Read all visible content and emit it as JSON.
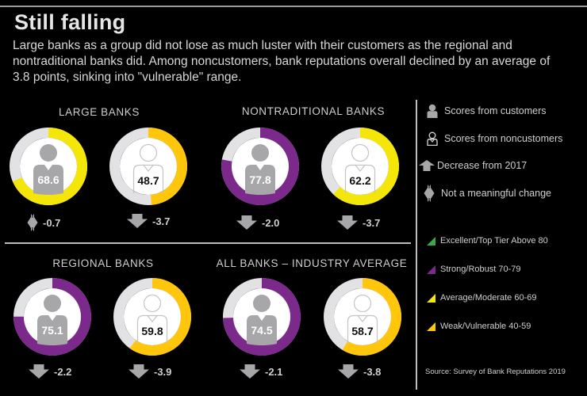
{
  "header": {
    "title": "Still falling",
    "subtitle": "Large banks as a group did not lose as much luster with their customers as the regional and nontraditional banks did. Among noncustomers, bank reputations overall declined by an average of 3.8 points, sinking into \"vulnerable\" range."
  },
  "legend": {
    "symbols": [
      {
        "icon": "customer-icon",
        "label": "Scores from customers"
      },
      {
        "icon": "noncustomer-icon",
        "label": "Scores from noncustomers"
      },
      {
        "icon": "decrease-arrow-icon",
        "label": "Decrease from 2017"
      },
      {
        "icon": "no-change-icon",
        "label": "Not a meaningful change"
      }
    ],
    "tiers": [
      {
        "label": "Excellent/Top Tier Above 80",
        "color": "#3aaa4a"
      },
      {
        "label": "Strong/Robust 70-79",
        "color": "#7b2a8c"
      },
      {
        "label": "Average/Moderate 60-69",
        "color": "#f5e60a"
      },
      {
        "label": "Weak/Vulnerable 40-59",
        "color": "#ffc60b"
      }
    ],
    "source": "Source: Survey of Bank Reputations 2019"
  },
  "colors": {
    "strong": "#7b2a8c",
    "average": "#f5e60a",
    "weak": "#ffc60b",
    "track": "#e2e2e4",
    "icon_gray": "#a7a7a9"
  },
  "chart_data": {
    "type": "donut",
    "title": "Still falling",
    "subtitle": "Bank reputation scores by group, customers vs. noncustomers (0-100)",
    "categories": [
      "Large banks",
      "Nontraditional banks",
      "Regional banks",
      "All banks - industry average"
    ],
    "series": [
      {
        "name": "Scores from customers",
        "values": [
          68.6,
          77.8,
          75.1,
          74.5
        ],
        "changes": [
          -0.7,
          -2.0,
          -2.2,
          -2.1
        ],
        "change_meaningful": [
          false,
          true,
          true,
          true
        ]
      },
      {
        "name": "Scores from noncustomers",
        "values": [
          48.7,
          62.2,
          59.8,
          58.7
        ],
        "changes": [
          -3.7,
          -3.7,
          -3.9,
          -3.8
        ],
        "change_meaningful": [
          true,
          true,
          true,
          true
        ]
      }
    ],
    "tiers": [
      {
        "name": "Excellent/Top Tier",
        "range": "Above 80",
        "color": "#3aaa4a"
      },
      {
        "name": "Strong/Robust",
        "range": "70-79",
        "color": "#7b2a8c"
      },
      {
        "name": "Average/Moderate",
        "range": "60-69",
        "color": "#f5e60a"
      },
      {
        "name": "Weak/Vulnerable",
        "range": "40-59",
        "color": "#ffc60b"
      }
    ],
    "ylim": [
      0,
      100
    ],
    "legend_position": "right"
  },
  "groups": [
    {
      "label": "LARGE BANKS",
      "customer": {
        "score": "68.6",
        "value": 68.6,
        "color": "#f5e60a",
        "change": "-0.7",
        "change_type": "no-change"
      },
      "noncustomer": {
        "score": "48.7",
        "value": 48.7,
        "color": "#ffc60b",
        "change": "-3.7",
        "change_type": "decrease"
      }
    },
    {
      "label": "NONTRADITIONAL BANKS",
      "customer": {
        "score": "77.8",
        "value": 77.8,
        "color": "#7b2a8c",
        "change": "-2.0",
        "change_type": "decrease"
      },
      "noncustomer": {
        "score": "62.2",
        "value": 62.2,
        "color": "#f5e60a",
        "change": "-3.7",
        "change_type": "decrease"
      }
    },
    {
      "label": "REGIONAL BANKS",
      "customer": {
        "score": "75.1",
        "value": 75.1,
        "color": "#7b2a8c",
        "change": "-2.2",
        "change_type": "decrease"
      },
      "noncustomer": {
        "score": "59.8",
        "value": 59.8,
        "color": "#ffc60b",
        "change": "-3.9",
        "change_type": "decrease"
      }
    },
    {
      "label": "ALL BANKS – INDUSTRY AVERAGE",
      "customer": {
        "score": "74.5",
        "value": 74.5,
        "color": "#7b2a8c",
        "change": "-2.1",
        "change_type": "decrease"
      },
      "noncustomer": {
        "score": "58.7",
        "value": 58.7,
        "color": "#ffc60b",
        "change": "-3.8",
        "change_type": "decrease"
      }
    }
  ]
}
